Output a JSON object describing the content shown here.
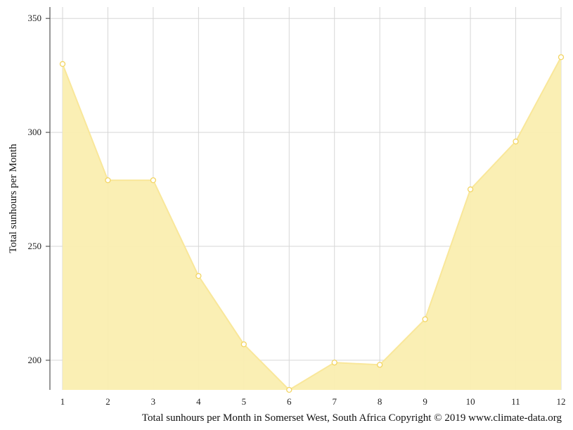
{
  "chart_data": {
    "type": "area",
    "x": [
      1,
      2,
      3,
      4,
      5,
      6,
      7,
      8,
      9,
      10,
      11,
      12
    ],
    "values": [
      330,
      279,
      279,
      237,
      207,
      187,
      199,
      198,
      218,
      275,
      296,
      333
    ],
    "ylabel": "Total sunhours per Month",
    "caption": "Total sunhours per Month in Somerset West, South Africa Copyright © 2019 www.climate-data.org",
    "yticks": [
      200,
      250,
      300,
      350
    ],
    "xticks": [
      1,
      2,
      3,
      4,
      5,
      6,
      7,
      8,
      9,
      10,
      11,
      12
    ],
    "ylim": [
      187,
      355
    ],
    "xlim": [
      1,
      12
    ],
    "grid": true,
    "colors": {
      "line": "#f9e79a",
      "fill": "#faeeb0",
      "marker_fill": "#ffffff",
      "marker_stroke": "#f3d563",
      "grid": "#d6d6d6",
      "axis": "#555555"
    }
  }
}
